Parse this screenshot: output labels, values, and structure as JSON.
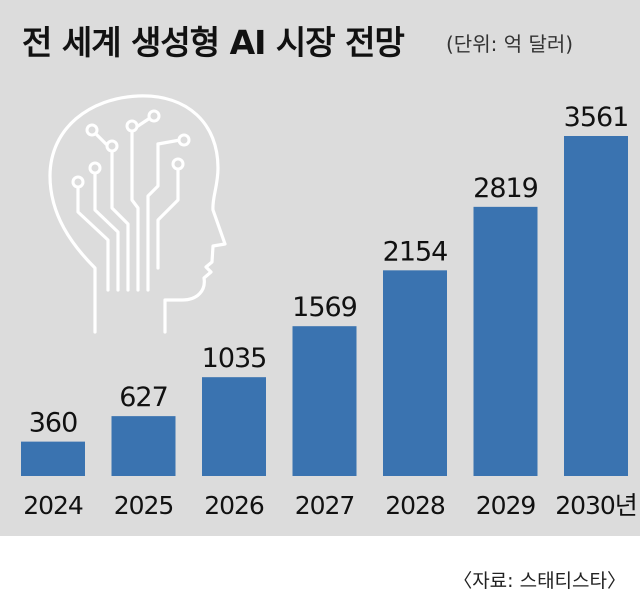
{
  "title": "전 세계 생성형 AI 시장 전망",
  "unit": "(단위: 억 달러)",
  "source": "〈자료: 스태티스타〉",
  "icon": "brain-head-circuit-icon",
  "colors": {
    "bar": "#3a73b0",
    "panel": "#dcdcdc",
    "brain": "#ffffff"
  },
  "chart_data": {
    "type": "bar",
    "categories": [
      "2024",
      "2025",
      "2026",
      "2027",
      "2028",
      "2029",
      "2030년"
    ],
    "values": [
      360,
      627,
      1035,
      1569,
      2154,
      2819,
      3561
    ],
    "title": "전 세계 생성형 AI 시장 전망",
    "unit": "억 달러",
    "grid": false,
    "legend": "none"
  }
}
